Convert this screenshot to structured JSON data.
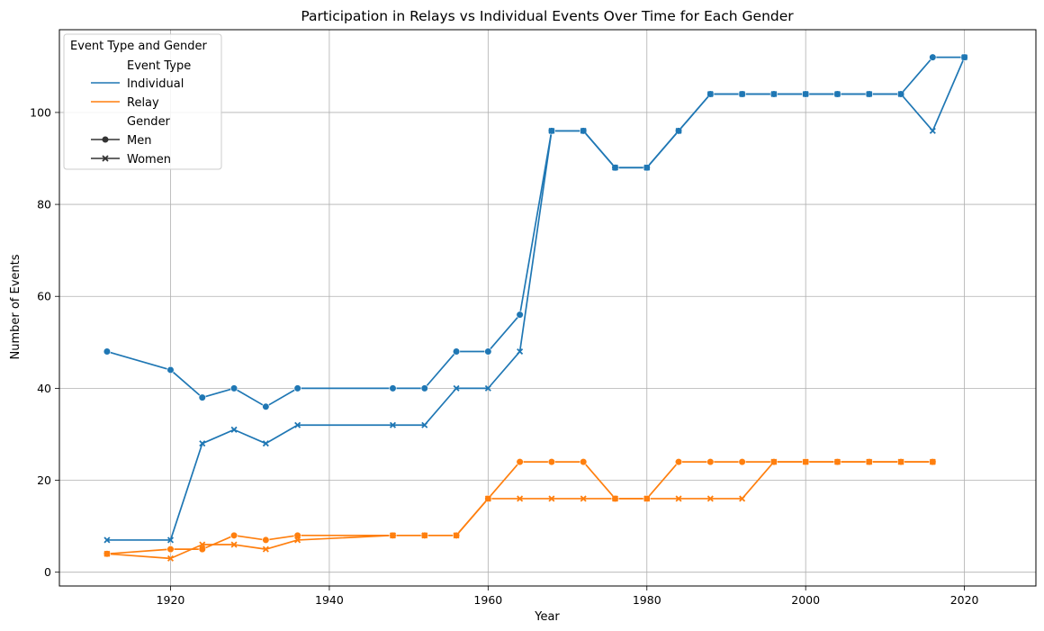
{
  "chart_data": {
    "type": "line",
    "title": "Participation in Relays vs Individual Events Over Time for Each Gender",
    "xlabel": "Year",
    "ylabel": "Number of Events",
    "xlim": [
      1906,
      2029
    ],
    "ylim": [
      -3,
      118
    ],
    "xticks": [
      1920,
      1940,
      1960,
      1980,
      2000,
      2020
    ],
    "yticks": [
      0,
      20,
      40,
      60,
      80,
      100
    ],
    "grid": true,
    "legend": {
      "title": "Event Type and Gender",
      "position": "top-left",
      "hue_title": "Event Type",
      "style_title": "Gender",
      "hue_entries": [
        {
          "label": "Individual",
          "color": "#1f77b4"
        },
        {
          "label": "Relay",
          "color": "#ff7f0e"
        }
      ],
      "style_entries": [
        {
          "label": "Men",
          "marker": "circle"
        },
        {
          "label": "Women",
          "marker": "x"
        }
      ]
    },
    "series": [
      {
        "name": "Individual Men",
        "event_type": "Individual",
        "gender": "Men",
        "color": "#1f77b4",
        "marker": "circle",
        "x": [
          1912,
          1920,
          1924,
          1928,
          1932,
          1936,
          1948,
          1952,
          1956,
          1960,
          1964,
          1968,
          1972,
          1976,
          1980,
          1984,
          1988,
          1992,
          1996,
          2000,
          2004,
          2008,
          2012,
          2016,
          2020
        ],
        "y": [
          48,
          44,
          38,
          40,
          36,
          40,
          40,
          40,
          48,
          48,
          56,
          96,
          96,
          88,
          88,
          96,
          104,
          104,
          104,
          104,
          104,
          104,
          104,
          112,
          112
        ]
      },
      {
        "name": "Individual Women",
        "event_type": "Individual",
        "gender": "Women",
        "color": "#1f77b4",
        "marker": "x",
        "x": [
          1912,
          1920,
          1924,
          1928,
          1932,
          1936,
          1948,
          1952,
          1956,
          1960,
          1964,
          1968,
          1972,
          1976,
          1980,
          1984,
          1988,
          1992,
          1996,
          2000,
          2004,
          2008,
          2012,
          2016,
          2020
        ],
        "y": [
          7,
          7,
          28,
          31,
          28,
          32,
          32,
          32,
          40,
          40,
          48,
          96,
          96,
          88,
          88,
          96,
          104,
          104,
          104,
          104,
          104,
          104,
          104,
          96,
          112
        ]
      },
      {
        "name": "Relay Men",
        "event_type": "Relay",
        "gender": "Men",
        "color": "#ff7f0e",
        "marker": "circle",
        "x": [
          1912,
          1920,
          1924,
          1928,
          1932,
          1936,
          1948,
          1952,
          1956,
          1960,
          1964,
          1968,
          1972,
          1976,
          1980,
          1984,
          1988,
          1992,
          1996,
          2000,
          2004,
          2008,
          2012,
          2016
        ],
        "y": [
          4,
          5,
          5,
          8,
          7,
          8,
          8,
          8,
          8,
          16,
          24,
          24,
          24,
          16,
          16,
          24,
          24,
          24,
          24,
          24,
          24,
          24,
          24,
          24
        ]
      },
      {
        "name": "Relay Women",
        "event_type": "Relay",
        "gender": "Women",
        "color": "#ff7f0e",
        "marker": "x",
        "x": [
          1912,
          1920,
          1924,
          1928,
          1932,
          1936,
          1948,
          1952,
          1956,
          1960,
          1964,
          1968,
          1972,
          1976,
          1980,
          1984,
          1988,
          1992,
          1996,
          2000,
          2004,
          2008,
          2012,
          2016
        ],
        "y": [
          4,
          3,
          6,
          6,
          5,
          7,
          8,
          8,
          8,
          16,
          16,
          16,
          16,
          16,
          16,
          16,
          16,
          16,
          24,
          24,
          24,
          24,
          24,
          24
        ]
      }
    ]
  }
}
